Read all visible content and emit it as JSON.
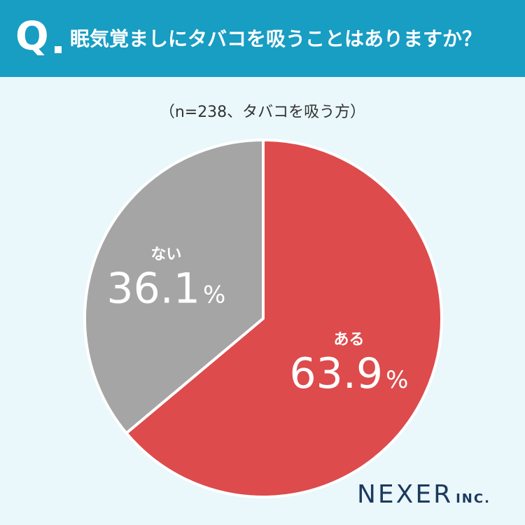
{
  "header": {
    "q_mark": "Q",
    "question": "眠気覚ましにタバコを吸うことはありますか？"
  },
  "note": "（n=238、タバコを吸う方）",
  "logo": {
    "main": "NEXER",
    "sub": "INC."
  },
  "colors": {
    "header_bg": "#189dc3",
    "background": "#eaf7fb",
    "slice_yes": "#dd4b4c",
    "slice_no": "#a5a5a5"
  },
  "chart_data": {
    "type": "pie",
    "slices": [
      {
        "label": "ある",
        "value": 63.9,
        "display": "63.9",
        "unit": "%",
        "color": "#dd4b4c"
      },
      {
        "label": "ない",
        "value": 36.1,
        "display": "36.1",
        "unit": "%",
        "color": "#a5a5a5"
      }
    ],
    "start": "12 o'clock",
    "direction": "clockwise"
  }
}
